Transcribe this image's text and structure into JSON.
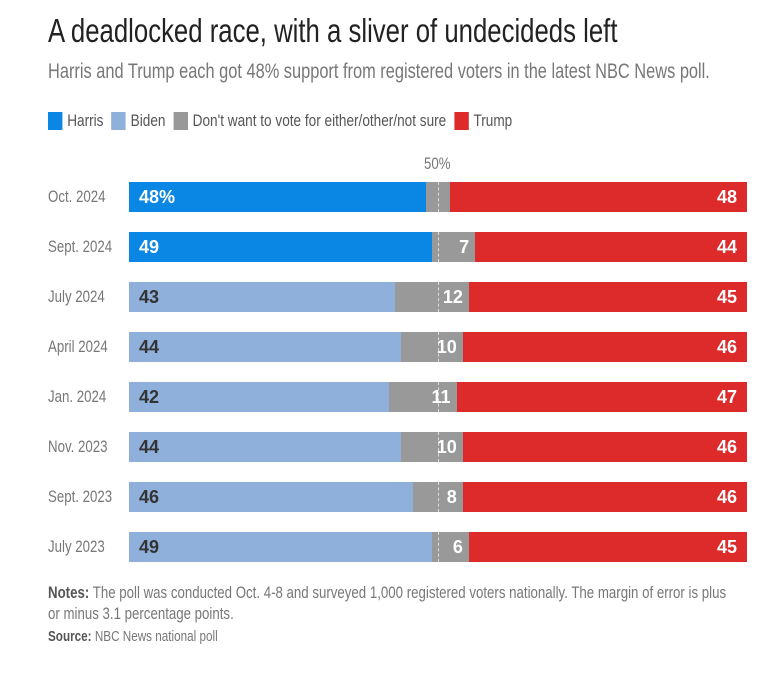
{
  "title": "A deadlocked race, with a sliver of undecideds left",
  "subtitle": "Harris and Trump each got 48% support from registered voters in the latest NBC News poll.",
  "legend": [
    {
      "label": "Harris",
      "color": "#0a86e4"
    },
    {
      "label": "Biden",
      "color": "#8eb0da"
    },
    {
      "label": "Don't want to vote for either/other/not sure",
      "color": "#999999"
    },
    {
      "label": "Trump",
      "color": "#dd2a2b"
    }
  ],
  "reference_label": "50%",
  "notes_label": "Notes:",
  "notes": "The poll was conducted Oct. 4-8 and surveyed 1,000 registered voters nationally. The margin of error is plus or minus 3.1 percentage points.",
  "source_label": "Source:",
  "source": "NBC News national poll",
  "chart_data": {
    "type": "bar",
    "stacked": true,
    "orientation": "horizontal",
    "xlim": [
      0,
      100
    ],
    "reference_line": 50,
    "categories": [
      "Oct. 2024",
      "Sept. 2024",
      "July 2024",
      "April 2024",
      "Jan. 2024",
      "Nov. 2023",
      "Sept. 2023",
      "July 2023"
    ],
    "rows": [
      {
        "dem": "Harris",
        "values": [
          48,
          4,
          48
        ],
        "labels": [
          "48%",
          "",
          "48"
        ]
      },
      {
        "dem": "Harris",
        "values": [
          49,
          7,
          44
        ],
        "labels": [
          "49",
          "7",
          "44"
        ]
      },
      {
        "dem": "Biden",
        "values": [
          43,
          12,
          45
        ],
        "labels": [
          "43",
          "12",
          "45"
        ]
      },
      {
        "dem": "Biden",
        "values": [
          44,
          10,
          46
        ],
        "labels": [
          "44",
          "10",
          "46"
        ]
      },
      {
        "dem": "Biden",
        "values": [
          42,
          11,
          47
        ],
        "labels": [
          "42",
          "11",
          "47"
        ]
      },
      {
        "dem": "Biden",
        "values": [
          44,
          10,
          46
        ],
        "labels": [
          "44",
          "10",
          "46"
        ]
      },
      {
        "dem": "Biden",
        "values": [
          46,
          8,
          46
        ],
        "labels": [
          "46",
          "8",
          "46"
        ]
      },
      {
        "dem": "Biden",
        "values": [
          49,
          6,
          45
        ],
        "labels": [
          "49",
          "6",
          "45"
        ]
      }
    ]
  }
}
